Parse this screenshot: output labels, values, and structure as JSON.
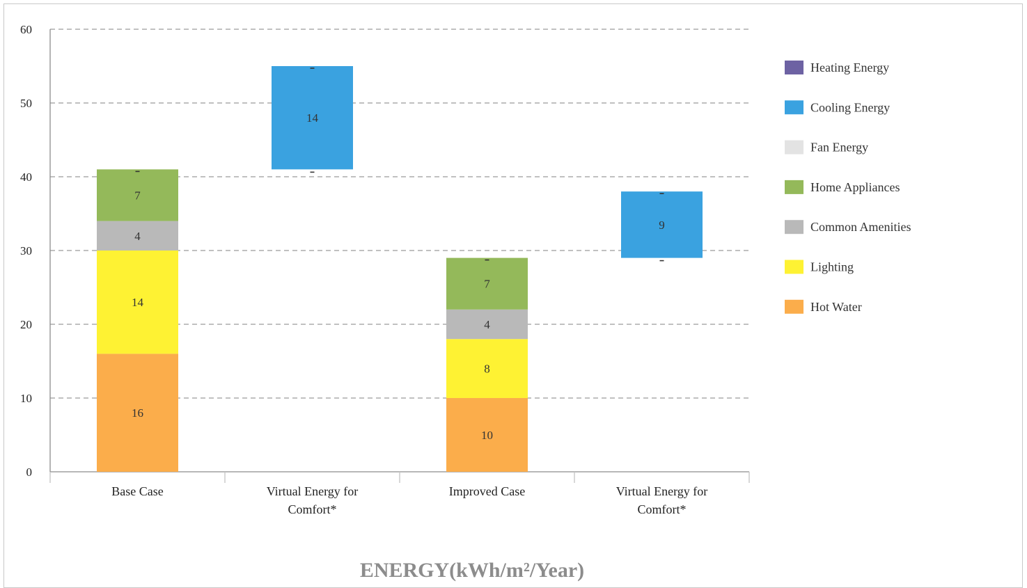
{
  "chart_data": {
    "type": "bar",
    "stacked": true,
    "title": "ENERGY(kWh/m²/Year)",
    "categories": [
      [
        "Base Case"
      ],
      [
        "Virtual Energy for",
        "Comfort*"
      ],
      [
        "Improved Case"
      ],
      [
        "Virtual Energy for",
        "Comfort*"
      ]
    ],
    "ylim": [
      0,
      60
    ],
    "yticks": [
      "0",
      "10",
      "20",
      "30",
      "40",
      "50",
      "60"
    ],
    "grid": true,
    "legend_position": "right",
    "series": [
      {
        "name": "Hot Water",
        "color": "#fbad4b",
        "values": [
          16,
          0,
          10,
          0
        ]
      },
      {
        "name": "Lighting",
        "color": "#fef233",
        "values": [
          14,
          0,
          8,
          0
        ]
      },
      {
        "name": "Common Amenities",
        "color": "#b9b9b9",
        "values": [
          4,
          0,
          4,
          0
        ]
      },
      {
        "name": "Home Appliances",
        "color": "#94b95a",
        "values": [
          7,
          0,
          7,
          0
        ]
      },
      {
        "name": "Fan Energy",
        "color": "#e3e3e3",
        "values": [
          0,
          0,
          0,
          0
        ]
      },
      {
        "name": "Cooling Energy",
        "color": "#3aa2e0",
        "values": [
          0,
          14,
          0,
          9
        ]
      },
      {
        "name": "Heating Energy",
        "color": "#6d62a3",
        "values": [
          0,
          0,
          0,
          0
        ]
      }
    ],
    "base_offsets": [
      0,
      41,
      0,
      29
    ],
    "legend_order": [
      "Heating Energy",
      "Cooling Energy",
      "Fan Energy",
      "Home Appliances",
      "Common Amenities",
      "Lighting",
      "Hot Water"
    ]
  }
}
